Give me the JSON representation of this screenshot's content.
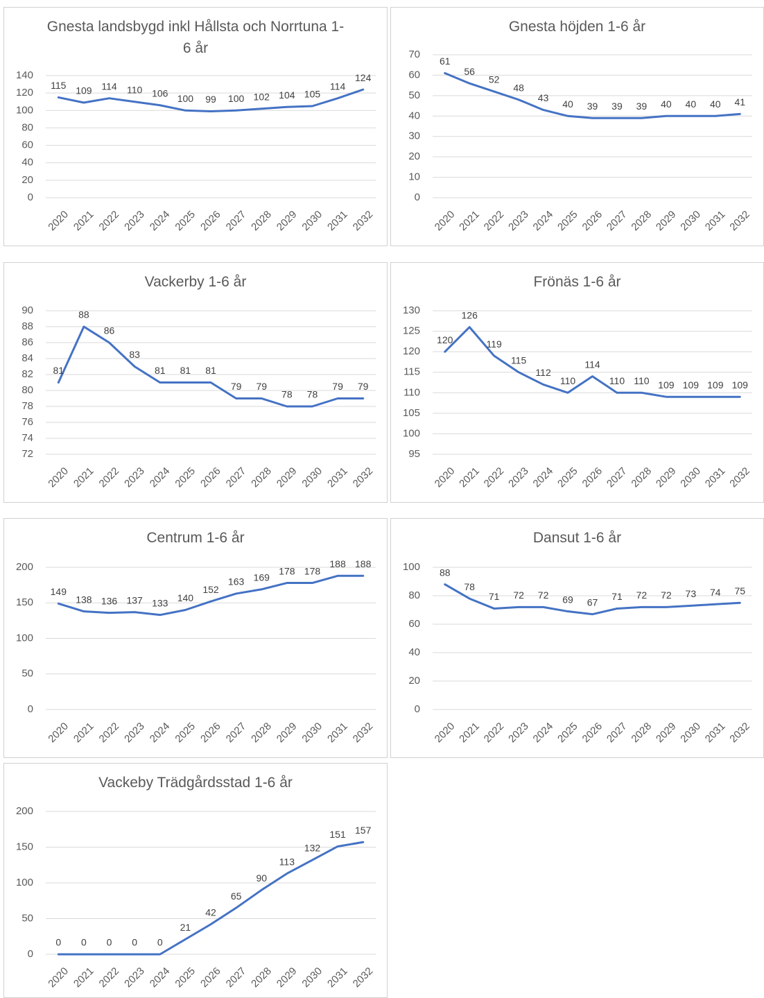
{
  "chart_data": [
    {
      "type": "line",
      "title": "Gnesta landsbygd inkl Hållsta och Norrtuna 1-6 år",
      "categories": [
        "2020",
        "2021",
        "2022",
        "2023",
        "2024",
        "2025",
        "2026",
        "2027",
        "2028",
        "2029",
        "2030",
        "2031",
        "2032"
      ],
      "values": [
        115,
        109,
        114,
        110,
        106,
        100,
        99,
        100,
        102,
        104,
        105,
        114,
        124
      ],
      "color": "#4472c4",
      "ylim": [
        0,
        140
      ],
      "yticks": [
        0,
        20,
        40,
        60,
        80,
        100,
        120,
        140
      ],
      "grid": true
    },
    {
      "type": "line",
      "title": "Gnesta höjden 1-6 år",
      "categories": [
        "2020",
        "2021",
        "2022",
        "2023",
        "2024",
        "2025",
        "2026",
        "2027",
        "2028",
        "2029",
        "2030",
        "2031",
        "2032"
      ],
      "values": [
        61,
        56,
        52,
        48,
        43,
        40,
        39,
        39,
        39,
        40,
        40,
        40,
        41
      ],
      "color": "#4472c4",
      "ylim": [
        0,
        70
      ],
      "yticks": [
        0,
        10,
        20,
        30,
        40,
        50,
        60,
        70
      ],
      "grid": true
    },
    {
      "type": "line",
      "title": "Vackerby 1-6 år",
      "categories": [
        "2020",
        "2021",
        "2022",
        "2023",
        "2024",
        "2025",
        "2026",
        "2027",
        "2028",
        "2029",
        "2030",
        "2031",
        "2032"
      ],
      "values": [
        81,
        88,
        86,
        83,
        81,
        81,
        81,
        79,
        79,
        78,
        78,
        79,
        79
      ],
      "color": "#4472c4",
      "ylim": [
        72,
        90
      ],
      "yticks": [
        72,
        74,
        76,
        78,
        80,
        82,
        84,
        86,
        88,
        90
      ],
      "grid": true
    },
    {
      "type": "line",
      "title": "Frönäs 1-6 år",
      "categories": [
        "2020",
        "2021",
        "2022",
        "2023",
        "2024",
        "2025",
        "2026",
        "2027",
        "2028",
        "2029",
        "2030",
        "2031",
        "2032"
      ],
      "values": [
        120,
        126,
        119,
        115,
        112,
        110,
        114,
        110,
        110,
        109,
        109,
        109,
        109
      ],
      "color": "#4472c4",
      "ylim": [
        95,
        130
      ],
      "yticks": [
        95,
        100,
        105,
        110,
        115,
        120,
        125,
        130
      ],
      "grid": true
    },
    {
      "type": "line",
      "title": "Centrum 1-6 år",
      "categories": [
        "2020",
        "2021",
        "2022",
        "2023",
        "2024",
        "2025",
        "2026",
        "2027",
        "2028",
        "2029",
        "2030",
        "2031",
        "2032"
      ],
      "values": [
        149,
        138,
        136,
        137,
        133,
        140,
        152,
        163,
        169,
        178,
        178,
        188,
        188
      ],
      "color": "#4472c4",
      "ylim": [
        0,
        200
      ],
      "yticks": [
        0,
        50,
        100,
        150,
        200
      ],
      "grid": true
    },
    {
      "type": "line",
      "title": "Dansut 1-6 år",
      "categories": [
        "2020",
        "2021",
        "2022",
        "2023",
        "2024",
        "2025",
        "2026",
        "2027",
        "2028",
        "2029",
        "2030",
        "2031",
        "2032"
      ],
      "values": [
        88,
        78,
        71,
        72,
        72,
        69,
        67,
        71,
        72,
        72,
        73,
        74,
        75
      ],
      "color": "#4472c4",
      "ylim": [
        0,
        100
      ],
      "yticks": [
        0,
        20,
        40,
        60,
        80,
        100
      ],
      "grid": true
    },
    {
      "type": "line",
      "title": "Vackeby Trädgårdsstad 1-6 år",
      "categories": [
        "2020",
        "2021",
        "2022",
        "2023",
        "2024",
        "2025",
        "2026",
        "2027",
        "2028",
        "2029",
        "2030",
        "2031",
        "2032"
      ],
      "values": [
        0,
        0,
        0,
        0,
        0,
        21,
        42,
        65,
        90,
        113,
        132,
        151,
        157
      ],
      "color": "#4472c4",
      "ylim": [
        0,
        200
      ],
      "yticks": [
        0,
        50,
        100,
        150,
        200
      ],
      "grid": true
    }
  ]
}
